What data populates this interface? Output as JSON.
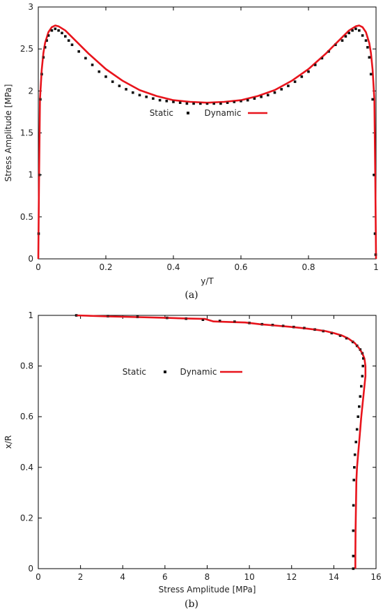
{
  "chart_data": [
    {
      "type": "scatter",
      "caption": "(a)",
      "xlabel": "y/T",
      "ylabel": "Stress Amplitude [MPa]",
      "xlim": [
        0,
        1
      ],
      "ylim": [
        0,
        3
      ],
      "xticks": [
        "0",
        "0.2",
        "0.4",
        "0.6",
        "0.8",
        "1"
      ],
      "yticks": [
        "0",
        "0.5",
        "1",
        "1.5",
        "2",
        "2.5",
        "3"
      ],
      "grid": false,
      "legend_position": "center",
      "series": [
        {
          "name": "Static",
          "style": "markers",
          "color": "#111111",
          "x": [
            0.001,
            0.003,
            0.006,
            0.01,
            0.015,
            0.02,
            0.025,
            0.03,
            0.04,
            0.05,
            0.06,
            0.07,
            0.08,
            0.09,
            0.1,
            0.12,
            0.14,
            0.16,
            0.18,
            0.2,
            0.22,
            0.24,
            0.26,
            0.28,
            0.3,
            0.32,
            0.34,
            0.36,
            0.38,
            0.4,
            0.42,
            0.44,
            0.46,
            0.48,
            0.5,
            0.52,
            0.54,
            0.56,
            0.58,
            0.6,
            0.62,
            0.64,
            0.66,
            0.68,
            0.7,
            0.72,
            0.74,
            0.76,
            0.78,
            0.8,
            0.82,
            0.84,
            0.86,
            0.88,
            0.9,
            0.91,
            0.92,
            0.93,
            0.94,
            0.95,
            0.96,
            0.97,
            0.975,
            0.98,
            0.985,
            0.99,
            0.994,
            0.997,
            0.999
          ],
          "y": [
            0.3,
            1.0,
            1.9,
            2.2,
            2.4,
            2.52,
            2.6,
            2.66,
            2.72,
            2.74,
            2.72,
            2.69,
            2.65,
            2.6,
            2.55,
            2.47,
            2.39,
            2.31,
            2.23,
            2.17,
            2.11,
            2.06,
            2.02,
            1.98,
            1.95,
            1.93,
            1.91,
            1.89,
            1.88,
            1.87,
            1.86,
            1.85,
            1.85,
            1.85,
            1.85,
            1.85,
            1.85,
            1.86,
            1.87,
            1.88,
            1.89,
            1.91,
            1.93,
            1.95,
            1.98,
            2.02,
            2.06,
            2.11,
            2.17,
            2.23,
            2.31,
            2.39,
            2.47,
            2.55,
            2.6,
            2.65,
            2.69,
            2.72,
            2.74,
            2.72,
            2.66,
            2.6,
            2.52,
            2.4,
            2.2,
            1.9,
            1.0,
            0.3,
            0.05
          ]
        },
        {
          "name": "Dynamic",
          "style": "line",
          "color": "#e8141c",
          "x": [
            0.0,
            0.002,
            0.005,
            0.01,
            0.015,
            0.02,
            0.03,
            0.04,
            0.05,
            0.06,
            0.08,
            0.1,
            0.12,
            0.15,
            0.2,
            0.25,
            0.3,
            0.35,
            0.4,
            0.45,
            0.5,
            0.55,
            0.6,
            0.65,
            0.7,
            0.75,
            0.8,
            0.85,
            0.88,
            0.9,
            0.92,
            0.94,
            0.95,
            0.96,
            0.97,
            0.98,
            0.985,
            0.99,
            0.995,
            0.998,
            1.0
          ],
          "y": [
            0.0,
            0.9,
            1.9,
            2.25,
            2.45,
            2.57,
            2.7,
            2.76,
            2.78,
            2.77,
            2.72,
            2.64,
            2.56,
            2.44,
            2.26,
            2.12,
            2.01,
            1.94,
            1.89,
            1.87,
            1.86,
            1.87,
            1.89,
            1.94,
            2.01,
            2.12,
            2.26,
            2.44,
            2.56,
            2.64,
            2.72,
            2.77,
            2.78,
            2.76,
            2.7,
            2.57,
            2.45,
            2.25,
            1.9,
            0.9,
            0.0
          ]
        }
      ]
    },
    {
      "type": "scatter",
      "caption": "(b)",
      "xlabel": "Stress Amplitude [MPa]",
      "ylabel": "x/R",
      "xlim": [
        0,
        16
      ],
      "ylim": [
        0,
        1
      ],
      "xticks": [
        "0",
        "2",
        "4",
        "6",
        "8",
        "10",
        "12",
        "14",
        "16"
      ],
      "yticks": [
        "0",
        "0.2",
        "0.4",
        "0.6",
        "0.8",
        "1"
      ],
      "grid": false,
      "legend_position": "upper-center",
      "series": [
        {
          "name": "Static",
          "style": "markers",
          "color": "#111111",
          "x": [
            1.8,
            3.3,
            4.7,
            6.1,
            7.0,
            7.8,
            8.6,
            9.3,
            10.0,
            10.6,
            11.1,
            11.6,
            12.1,
            12.6,
            13.1,
            13.5,
            13.9,
            14.3,
            14.6,
            14.9,
            15.1,
            15.25,
            15.35,
            15.4,
            15.38,
            15.35,
            15.3,
            15.25,
            15.2,
            15.15,
            15.1,
            15.05,
            15.0,
            14.97,
            14.95,
            14.93,
            14.92,
            14.92,
            14.92
          ],
          "y": [
            1.0,
            0.997,
            0.994,
            0.99,
            0.987,
            0.983,
            0.978,
            0.975,
            0.97,
            0.965,
            0.962,
            0.958,
            0.954,
            0.95,
            0.944,
            0.938,
            0.93,
            0.92,
            0.91,
            0.895,
            0.88,
            0.865,
            0.85,
            0.83,
            0.8,
            0.76,
            0.72,
            0.68,
            0.64,
            0.6,
            0.55,
            0.5,
            0.45,
            0.4,
            0.35,
            0.25,
            0.15,
            0.05,
            0.0
          ]
        },
        {
          "name": "Dynamic",
          "style": "line",
          "color": "#e8141c",
          "x": [
            1.8,
            3.3,
            4.7,
            6.1,
            7.0,
            7.9,
            8.3,
            9.0,
            9.8,
            10.5,
            11.2,
            11.9,
            12.5,
            13.1,
            13.6,
            14.0,
            14.4,
            14.7,
            15.0,
            15.2,
            15.35,
            15.45,
            15.5,
            15.5,
            15.45,
            15.4,
            15.35,
            15.3,
            15.25,
            15.2,
            15.15,
            15.1,
            15.07,
            15.05,
            15.03,
            15.02,
            15.02
          ],
          "y": [
            1.0,
            0.996,
            0.993,
            0.99,
            0.988,
            0.986,
            0.976,
            0.974,
            0.972,
            0.965,
            0.96,
            0.955,
            0.95,
            0.944,
            0.938,
            0.93,
            0.92,
            0.908,
            0.89,
            0.87,
            0.85,
            0.83,
            0.8,
            0.76,
            0.72,
            0.68,
            0.64,
            0.6,
            0.55,
            0.5,
            0.45,
            0.4,
            0.35,
            0.25,
            0.15,
            0.05,
            0.0
          ]
        }
      ]
    }
  ]
}
